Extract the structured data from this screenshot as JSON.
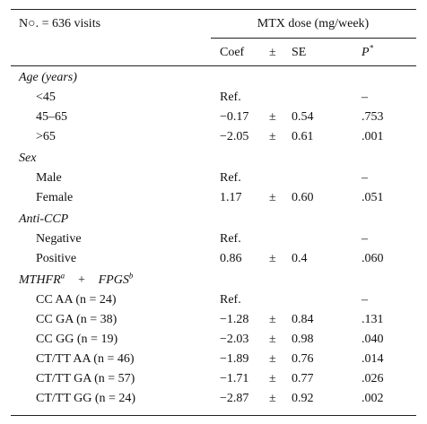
{
  "header": {
    "left": "N○. = 636 visits",
    "group": "MTX dose (mg/week)",
    "columns": [
      "Coef",
      "±",
      "SE",
      "P"
    ],
    "p_sup": "*"
  },
  "sections": [
    {
      "title": [
        {
          "text": "Age (years)"
        }
      ],
      "rows": [
        {
          "label": "<45",
          "coef": "Ref.",
          "p": "–"
        },
        {
          "label": "45–65",
          "coef": "−0.17",
          "pm": "±",
          "se": "0.54",
          "p": ".753"
        },
        {
          "label": ">65",
          "coef": "−2.05",
          "pm": "±",
          "se": "0.61",
          "p": ".001"
        }
      ]
    },
    {
      "title": [
        {
          "text": "Sex"
        }
      ],
      "rows": [
        {
          "label": "Male",
          "coef": "Ref.",
          "p": "–"
        },
        {
          "label": "Female",
          "coef": "1.17",
          "pm": "±",
          "se": "0.60",
          "p": ".051"
        }
      ]
    },
    {
      "title": [
        {
          "text": "Anti-CCP"
        }
      ],
      "rows": [
        {
          "label": "Negative",
          "coef": "Ref.",
          "p": "–"
        },
        {
          "label": "Positive",
          "coef": "0.86",
          "pm": "±",
          "se": "0.4",
          "p": ".060"
        }
      ]
    },
    {
      "title": [
        {
          "text": "MTHFR",
          "sup": "a"
        },
        {
          "text": "+"
        },
        {
          "text": "FPGS",
          "sup": "b"
        }
      ],
      "rows": [
        {
          "label": "CC AA (n = 24)",
          "coef": "Ref.",
          "p": "–"
        },
        {
          "label": "CC GA (n = 38)",
          "coef": "−1.28",
          "pm": "±",
          "se": "0.84",
          "p": ".131"
        },
        {
          "label": "CC GG (n = 19)",
          "coef": "−2.03",
          "pm": "±",
          "se": "0.98",
          "p": ".040"
        },
        {
          "label": "CT/TT AA (n = 46)",
          "coef": "−1.89",
          "pm": "±",
          "se": "0.76",
          "p": ".014"
        },
        {
          "label": "CT/TT GA (n = 57)",
          "coef": "−1.71",
          "pm": "±",
          "se": "0.77",
          "p": ".026"
        },
        {
          "label": "CT/TT GG (n = 24)",
          "coef": "−2.87",
          "pm": "±",
          "se": "0.92",
          "p": ".002"
        }
      ]
    }
  ]
}
